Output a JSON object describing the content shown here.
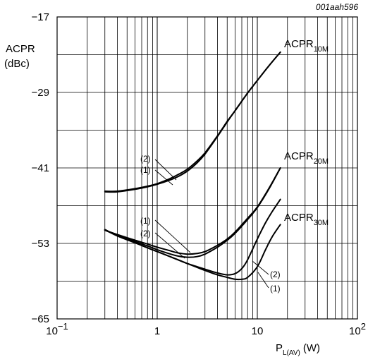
{
  "chart_data": {
    "type": "line",
    "figure_code": "001aah596",
    "ylabel": {
      "line1": "ACPR",
      "line2": "(dBc)"
    },
    "xlabel": {
      "main": "P",
      "sub": "L(AV)",
      "unit": "(W)"
    },
    "x_scale": "log",
    "xlim": [
      0.1,
      100
    ],
    "ylim": [
      -65,
      -17
    ],
    "grid": true,
    "x_ticks": [
      {
        "value": 0.1,
        "base": "10",
        "exp": "−1"
      },
      {
        "value": 1,
        "base": "1",
        "exp": ""
      },
      {
        "value": 10,
        "base": "10",
        "exp": ""
      },
      {
        "value": 100,
        "base": "10",
        "exp": "2"
      }
    ],
    "y_ticks": [
      {
        "value": -17,
        "label": "−17"
      },
      {
        "value": -29,
        "label": "−29"
      },
      {
        "value": -41,
        "label": "−41"
      },
      {
        "value": -53,
        "label": "−53"
      },
      {
        "value": -65,
        "label": "−65"
      }
    ],
    "series": [
      {
        "name": "ACPR10M (1)",
        "group": "10M",
        "variant": "1",
        "x": [
          0.3,
          0.4,
          0.6,
          0.8,
          1.0,
          1.3,
          1.6,
          2.0,
          2.5,
          3.0,
          4.0,
          5.0,
          6.0,
          8.0,
          10.0,
          13.0,
          17.0
        ],
        "y": [
          -44.8,
          -44.8,
          -44.4,
          -44.0,
          -43.6,
          -43.0,
          -42.4,
          -41.5,
          -40.2,
          -38.8,
          -36.0,
          -33.7,
          -31.9,
          -29.1,
          -27.1,
          -24.8,
          -22.6
        ]
      },
      {
        "name": "ACPR10M (2)",
        "group": "10M",
        "variant": "2",
        "x": [
          0.3,
          0.4,
          0.6,
          0.8,
          1.0,
          1.3,
          1.6,
          2.0,
          2.5,
          3.0,
          4.0,
          5.0,
          6.0,
          8.0,
          10.0,
          13.0,
          17.0
        ],
        "y": [
          -44.7,
          -44.7,
          -44.3,
          -43.9,
          -43.5,
          -42.8,
          -42.1,
          -41.2,
          -39.9,
          -38.6,
          -35.9,
          -33.6,
          -31.9,
          -29.1,
          -27.1,
          -24.8,
          -22.6
        ]
      },
      {
        "name": "ACPR20M (1)",
        "group": "20M",
        "variant": "1",
        "x": [
          0.3,
          0.4,
          0.6,
          0.8,
          1.0,
          1.3,
          1.6,
          2.0,
          2.5,
          3.0,
          4.0,
          5.0,
          6.0,
          8.0,
          10.0,
          13.0,
          17.0
        ],
        "y": [
          -50.9,
          -51.6,
          -52.5,
          -53.1,
          -53.6,
          -54.1,
          -54.5,
          -54.7,
          -54.6,
          -54.3,
          -53.3,
          -52.3,
          -51.2,
          -49.0,
          -47.2,
          -44.3,
          -41.0
        ]
      },
      {
        "name": "ACPR20M (2)",
        "group": "20M",
        "variant": "2",
        "x": [
          0.3,
          0.4,
          0.6,
          0.8,
          1.0,
          1.3,
          1.6,
          2.0,
          2.5,
          3.0,
          4.0,
          5.0,
          6.0,
          8.0,
          10.0,
          13.0,
          17.0
        ],
        "y": [
          -50.9,
          -51.7,
          -52.7,
          -53.4,
          -54.0,
          -54.6,
          -55.0,
          -55.2,
          -55.1,
          -54.7,
          -53.6,
          -52.5,
          -51.4,
          -49.2,
          -47.3,
          -44.4,
          -41.0
        ]
      },
      {
        "name": "ACPR30M (1)",
        "group": "30M",
        "variant": "1",
        "x": [
          0.3,
          0.4,
          0.6,
          0.8,
          1.0,
          1.5,
          2.0,
          3.0,
          4.0,
          5.0,
          6.0,
          7.0,
          8.0,
          10.0,
          12.0,
          14.0,
          17.0
        ],
        "y": [
          -50.8,
          -51.8,
          -52.9,
          -53.7,
          -54.3,
          -55.4,
          -56.2,
          -57.3,
          -58.0,
          -58.4,
          -58.7,
          -58.7,
          -58.4,
          -56.7,
          -54.1,
          -52.0,
          -50.0
        ]
      },
      {
        "name": "ACPR30M (2)",
        "group": "30M",
        "variant": "2",
        "x": [
          0.3,
          0.4,
          0.6,
          0.8,
          1.0,
          1.5,
          2.0,
          3.0,
          4.0,
          5.0,
          6.0,
          7.0,
          8.0,
          10.0,
          12.0,
          14.0,
          17.0
        ],
        "y": [
          -50.8,
          -51.8,
          -52.9,
          -53.7,
          -54.3,
          -55.4,
          -56.2,
          -57.1,
          -57.7,
          -58.0,
          -57.8,
          -57.0,
          -55.6,
          -52.3,
          -49.8,
          -48.0,
          -46.0
        ]
      }
    ],
    "annotations": {
      "series_labels": [
        {
          "group": "10M",
          "main": "ACPR",
          "sub": "10M"
        },
        {
          "group": "20M",
          "main": "ACPR",
          "sub": "20M"
        },
        {
          "group": "30M",
          "main": "ACPR",
          "sub": "30M"
        }
      ],
      "curve_markers": [
        {
          "group": "10M",
          "labels": [
            "(2)",
            "(1)"
          ]
        },
        {
          "group": "20M",
          "labels": [
            "(1)",
            "(2)"
          ]
        },
        {
          "group": "30M",
          "labels": [
            "(2)",
            "(1)"
          ]
        }
      ]
    }
  }
}
